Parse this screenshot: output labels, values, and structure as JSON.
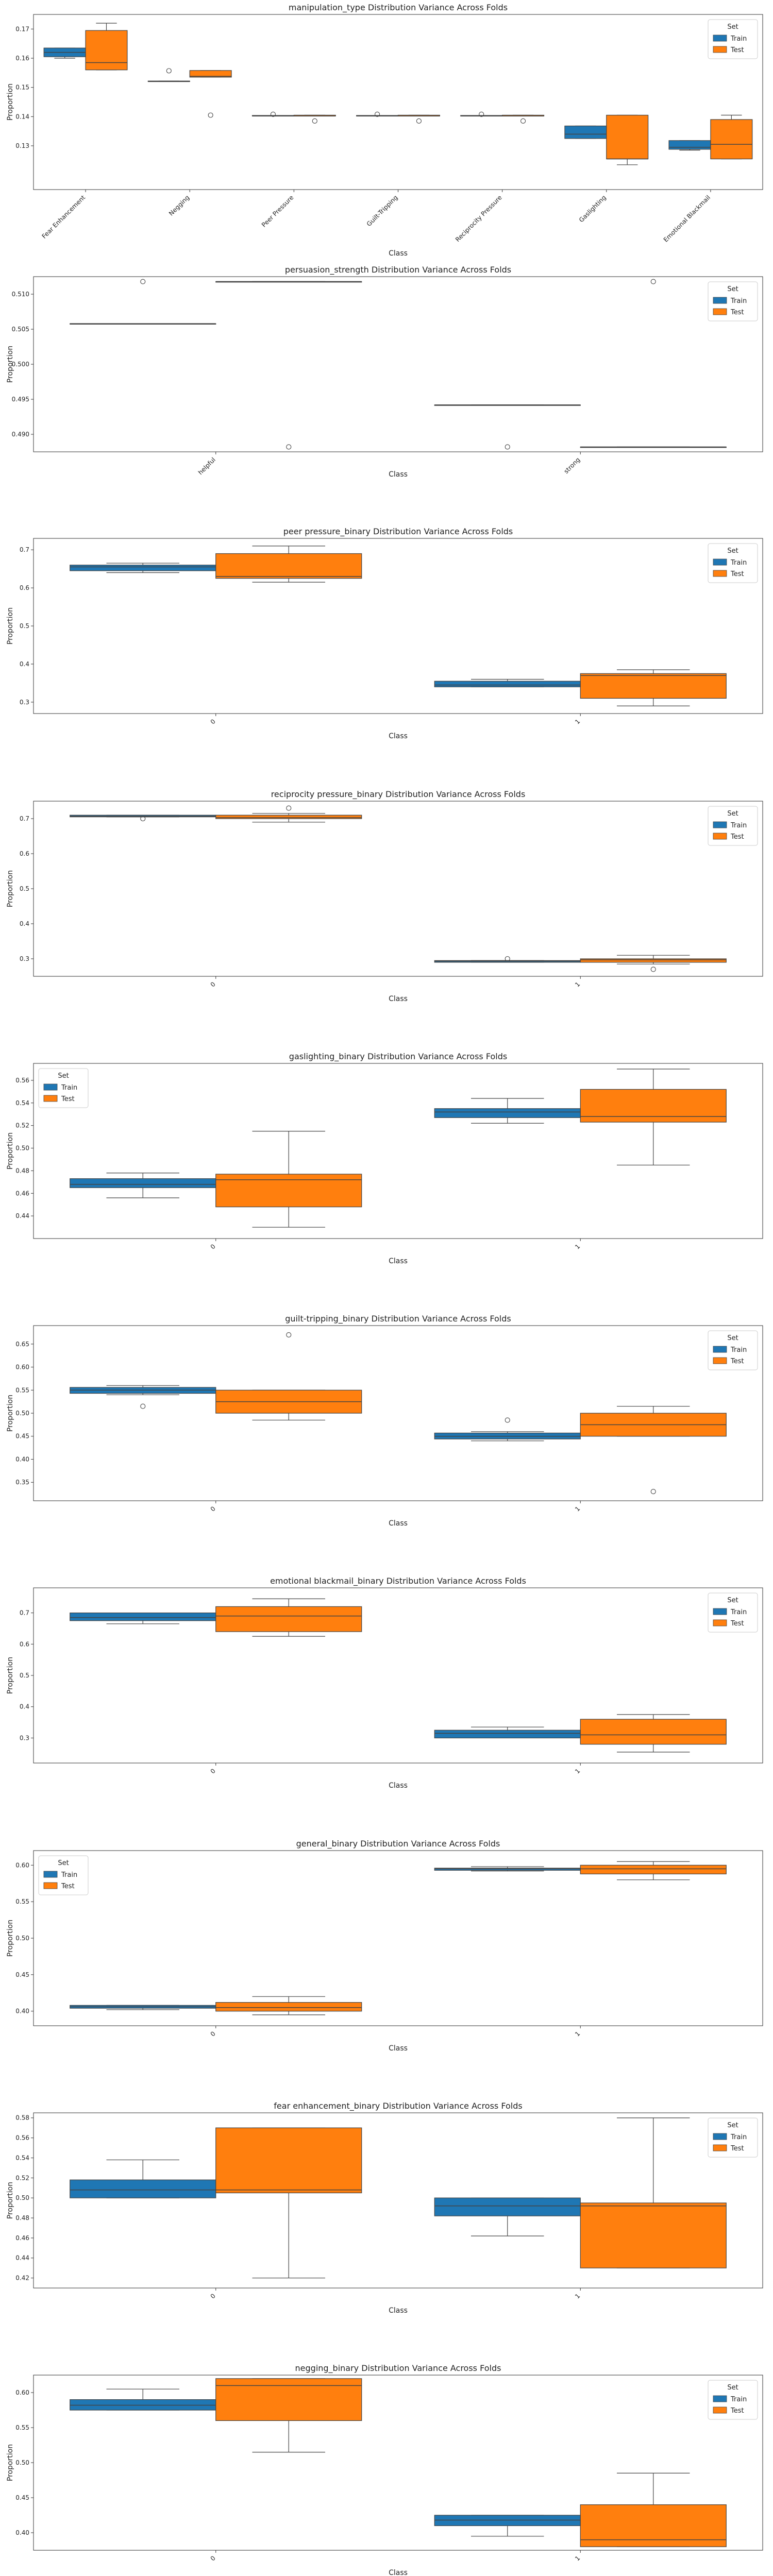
{
  "legend": {
    "title": "Set",
    "items": [
      {
        "label": "Train",
        "color": "#1f77b4"
      },
      {
        "label": "Test",
        "color": "#ff7f0e"
      }
    ]
  },
  "chart_data": [
    {
      "type": "box",
      "title": "manipulation_type Distribution Variance Across Folds",
      "xlabel": "Class",
      "ylabel": "Proportion",
      "ylim": [
        0.115,
        0.175
      ],
      "yticks": [
        0.13,
        0.14,
        0.15,
        0.16,
        0.17
      ],
      "legend_position": "top-right",
      "categories": [
        "Fear Enhancement",
        "Negging",
        "Peer Pressure",
        "Guilt-Tripping",
        "Reciprocity Pressure",
        "Gaslighting",
        "Emotional Blackmail"
      ],
      "series": [
        {
          "name": "Train",
          "boxes": [
            {
              "min": 0.16,
              "q1": 0.1605,
              "median": 0.162,
              "q3": 0.1635,
              "max": 0.1635,
              "outliers": []
            },
            {
              "min": 0.152,
              "q1": 0.152,
              "median": 0.152,
              "q3": 0.1522,
              "max": 0.1522,
              "outliers": [
                0.1557
              ]
            },
            {
              "min": 0.1402,
              "q1": 0.1402,
              "median": 0.1402,
              "q3": 0.1404,
              "max": 0.1404,
              "outliers": [
                0.1408
              ]
            },
            {
              "min": 0.1402,
              "q1": 0.1402,
              "median": 0.1402,
              "q3": 0.1404,
              "max": 0.1404,
              "outliers": [
                0.1408
              ]
            },
            {
              "min": 0.1402,
              "q1": 0.1402,
              "median": 0.1402,
              "q3": 0.1404,
              "max": 0.1404,
              "outliers": [
                0.1408
              ]
            },
            {
              "min": 0.1325,
              "q1": 0.1325,
              "median": 0.134,
              "q3": 0.1368,
              "max": 0.1368,
              "outliers": []
            },
            {
              "min": 0.1285,
              "q1": 0.1288,
              "median": 0.1295,
              "q3": 0.1318,
              "max": 0.1318,
              "outliers": []
            }
          ]
        },
        {
          "name": "Test",
          "boxes": [
            {
              "min": 0.156,
              "q1": 0.156,
              "median": 0.1585,
              "q3": 0.1695,
              "max": 0.172,
              "outliers": []
            },
            {
              "min": 0.1535,
              "q1": 0.1535,
              "median": 0.1538,
              "q3": 0.1558,
              "max": 0.1558,
              "outliers": [
                0.1405
              ]
            },
            {
              "min": 0.1402,
              "q1": 0.1402,
              "median": 0.1402,
              "q3": 0.1405,
              "max": 0.1405,
              "outliers": [
                0.1385
              ]
            },
            {
              "min": 0.1402,
              "q1": 0.1402,
              "median": 0.1402,
              "q3": 0.1405,
              "max": 0.1405,
              "outliers": [
                0.1385
              ]
            },
            {
              "min": 0.1402,
              "q1": 0.1402,
              "median": 0.1402,
              "q3": 0.1405,
              "max": 0.1405,
              "outliers": [
                0.1385
              ]
            },
            {
              "min": 0.1235,
              "q1": 0.1255,
              "median": 0.1255,
              "q3": 0.1405,
              "max": 0.1405,
              "outliers": []
            },
            {
              "min": 0.1255,
              "q1": 0.1255,
              "median": 0.1305,
              "q3": 0.139,
              "max": 0.1405,
              "outliers": []
            }
          ]
        }
      ]
    },
    {
      "type": "box",
      "title": "persuasion_strength Distribution Variance Across Folds",
      "xlabel": "Class",
      "ylabel": "Proportion",
      "ylim": [
        0.4875,
        0.5125
      ],
      "yticks": [
        0.49,
        0.495,
        0.5,
        0.505,
        0.51
      ],
      "legend_position": "top-right",
      "categories": [
        "helpful",
        "strong"
      ],
      "series": [
        {
          "name": "Train",
          "boxes": [
            {
              "min": 0.5058,
              "q1": 0.5058,
              "median": 0.5058,
              "q3": 0.5058,
              "max": 0.5058,
              "outliers": [
                0.5118
              ]
            },
            {
              "min": 0.4942,
              "q1": 0.4942,
              "median": 0.4942,
              "q3": 0.4942,
              "max": 0.4942,
              "outliers": [
                0.4882
              ]
            }
          ]
        },
        {
          "name": "Test",
          "boxes": [
            {
              "min": 0.5118,
              "q1": 0.5118,
              "median": 0.5118,
              "q3": 0.5118,
              "max": 0.5118,
              "outliers": [
                0.4882
              ]
            },
            {
              "min": 0.4882,
              "q1": 0.4882,
              "median": 0.4882,
              "q3": 0.4882,
              "max": 0.4882,
              "outliers": [
                0.5118
              ]
            }
          ]
        }
      ]
    },
    {
      "type": "box",
      "title": "peer pressure_binary Distribution Variance Across Folds",
      "xlabel": "Class",
      "ylabel": "Proportion",
      "ylim": [
        0.27,
        0.73
      ],
      "yticks": [
        0.3,
        0.4,
        0.5,
        0.6,
        0.7
      ],
      "legend_position": "top-right",
      "categories": [
        "0",
        "1"
      ],
      "series": [
        {
          "name": "Train",
          "boxes": [
            {
              "min": 0.64,
              "q1": 0.645,
              "median": 0.655,
              "q3": 0.66,
              "max": 0.665,
              "outliers": []
            },
            {
              "min": 0.34,
              "q1": 0.34,
              "median": 0.345,
              "q3": 0.355,
              "max": 0.36,
              "outliers": []
            }
          ]
        },
        {
          "name": "Test",
          "boxes": [
            {
              "min": 0.615,
              "q1": 0.625,
              "median": 0.63,
              "q3": 0.69,
              "max": 0.71,
              "outliers": []
            },
            {
              "min": 0.29,
              "q1": 0.31,
              "median": 0.37,
              "q3": 0.375,
              "max": 0.385,
              "outliers": []
            }
          ]
        }
      ]
    },
    {
      "type": "box",
      "title": "reciprocity pressure_binary Distribution Variance Across Folds",
      "xlabel": "Class",
      "ylabel": "Proportion",
      "ylim": [
        0.25,
        0.75
      ],
      "yticks": [
        0.3,
        0.4,
        0.5,
        0.6,
        0.7
      ],
      "legend_position": "top-right",
      "categories": [
        "0",
        "1"
      ],
      "series": [
        {
          "name": "Train",
          "boxes": [
            {
              "min": 0.705,
              "q1": 0.705,
              "median": 0.707,
              "q3": 0.71,
              "max": 0.71,
              "outliers": [
                0.7
              ]
            },
            {
              "min": 0.29,
              "q1": 0.29,
              "median": 0.293,
              "q3": 0.295,
              "max": 0.295,
              "outliers": [
                0.3
              ]
            }
          ]
        },
        {
          "name": "Test",
          "boxes": [
            {
              "min": 0.69,
              "q1": 0.7,
              "median": 0.703,
              "q3": 0.71,
              "max": 0.715,
              "outliers": [
                0.73
              ]
            },
            {
              "min": 0.285,
              "q1": 0.29,
              "median": 0.297,
              "q3": 0.3,
              "max": 0.31,
              "outliers": [
                0.27
              ]
            }
          ]
        }
      ]
    },
    {
      "type": "box",
      "title": "gaslighting_binary Distribution Variance Across Folds",
      "xlabel": "Class",
      "ylabel": "Proportion",
      "ylim": [
        0.42,
        0.575
      ],
      "yticks": [
        0.44,
        0.46,
        0.48,
        0.5,
        0.52,
        0.54,
        0.56
      ],
      "legend_position": "top-left",
      "categories": [
        "0",
        "1"
      ],
      "series": [
        {
          "name": "Train",
          "boxes": [
            {
              "min": 0.456,
              "q1": 0.465,
              "median": 0.468,
              "q3": 0.473,
              "max": 0.478,
              "outliers": []
            },
            {
              "min": 0.522,
              "q1": 0.527,
              "median": 0.532,
              "q3": 0.535,
              "max": 0.544,
              "outliers": []
            }
          ]
        },
        {
          "name": "Test",
          "boxes": [
            {
              "min": 0.43,
              "q1": 0.448,
              "median": 0.472,
              "q3": 0.477,
              "max": 0.515,
              "outliers": []
            },
            {
              "min": 0.485,
              "q1": 0.523,
              "median": 0.528,
              "q3": 0.552,
              "max": 0.57,
              "outliers": []
            }
          ]
        }
      ]
    },
    {
      "type": "box",
      "title": "guilt-tripping_binary Distribution Variance Across Folds",
      "xlabel": "Class",
      "ylabel": "Proportion",
      "ylim": [
        0.31,
        0.69
      ],
      "yticks": [
        0.35,
        0.4,
        0.45,
        0.5,
        0.55,
        0.6,
        0.65
      ],
      "legend_position": "top-right",
      "categories": [
        "0",
        "1"
      ],
      "series": [
        {
          "name": "Train",
          "boxes": [
            {
              "min": 0.54,
              "q1": 0.543,
              "median": 0.55,
              "q3": 0.556,
              "max": 0.56,
              "outliers": [
                0.515
              ]
            },
            {
              "min": 0.44,
              "q1": 0.444,
              "median": 0.45,
              "q3": 0.457,
              "max": 0.46,
              "outliers": [
                0.485
              ]
            }
          ]
        },
        {
          "name": "Test",
          "boxes": [
            {
              "min": 0.485,
              "q1": 0.5,
              "median": 0.525,
              "q3": 0.55,
              "max": 0.55,
              "outliers": [
                0.67
              ]
            },
            {
              "min": 0.45,
              "q1": 0.45,
              "median": 0.475,
              "q3": 0.5,
              "max": 0.515,
              "outliers": [
                0.33
              ]
            }
          ]
        }
      ]
    },
    {
      "type": "box",
      "title": "emotional blackmail_binary Distribution Variance Across Folds",
      "xlabel": "Class",
      "ylabel": "Proportion",
      "ylim": [
        0.22,
        0.78
      ],
      "yticks": [
        0.3,
        0.4,
        0.5,
        0.6,
        0.7
      ],
      "legend_position": "top-right",
      "categories": [
        "0",
        "1"
      ],
      "series": [
        {
          "name": "Train",
          "boxes": [
            {
              "min": 0.665,
              "q1": 0.675,
              "median": 0.685,
              "q3": 0.7,
              "max": 0.7,
              "outliers": []
            },
            {
              "min": 0.3,
              "q1": 0.3,
              "median": 0.315,
              "q3": 0.325,
              "max": 0.335,
              "outliers": []
            }
          ]
        },
        {
          "name": "Test",
          "boxes": [
            {
              "min": 0.625,
              "q1": 0.64,
              "median": 0.69,
              "q3": 0.72,
              "max": 0.745,
              "outliers": []
            },
            {
              "min": 0.255,
              "q1": 0.28,
              "median": 0.31,
              "q3": 0.36,
              "max": 0.375,
              "outliers": []
            }
          ]
        }
      ]
    },
    {
      "type": "box",
      "title": "general_binary Distribution Variance Across Folds",
      "xlabel": "Class",
      "ylabel": "Proportion",
      "ylim": [
        0.38,
        0.62
      ],
      "yticks": [
        0.4,
        0.45,
        0.5,
        0.55,
        0.6
      ],
      "legend_position": "top-left",
      "categories": [
        "0",
        "1"
      ],
      "series": [
        {
          "name": "Train",
          "boxes": [
            {
              "min": 0.402,
              "q1": 0.404,
              "median": 0.406,
              "q3": 0.408,
              "max": 0.408,
              "outliers": []
            },
            {
              "min": 0.592,
              "q1": 0.593,
              "median": 0.595,
              "q3": 0.596,
              "max": 0.598,
              "outliers": []
            }
          ]
        },
        {
          "name": "Test",
          "boxes": [
            {
              "min": 0.395,
              "q1": 0.4,
              "median": 0.405,
              "q3": 0.412,
              "max": 0.42,
              "outliers": []
            },
            {
              "min": 0.58,
              "q1": 0.588,
              "median": 0.595,
              "q3": 0.6,
              "max": 0.605,
              "outliers": []
            }
          ]
        }
      ]
    },
    {
      "type": "box",
      "title": "fear enhancement_binary Distribution Variance Across Folds",
      "xlabel": "Class",
      "ylabel": "Proportion",
      "ylim": [
        0.41,
        0.585
      ],
      "yticks": [
        0.42,
        0.44,
        0.46,
        0.48,
        0.5,
        0.52,
        0.54,
        0.56,
        0.58
      ],
      "legend_position": "top-right",
      "categories": [
        "0",
        "1"
      ],
      "series": [
        {
          "name": "Train",
          "boxes": [
            {
              "min": 0.5,
              "q1": 0.5,
              "median": 0.508,
              "q3": 0.518,
              "max": 0.538,
              "outliers": []
            },
            {
              "min": 0.462,
              "q1": 0.482,
              "median": 0.492,
              "q3": 0.5,
              "max": 0.5,
              "outliers": []
            }
          ]
        },
        {
          "name": "Test",
          "boxes": [
            {
              "min": 0.42,
              "q1": 0.505,
              "median": 0.508,
              "q3": 0.57,
              "max": 0.57,
              "outliers": []
            },
            {
              "min": 0.43,
              "q1": 0.43,
              "median": 0.492,
              "q3": 0.495,
              "max": 0.58,
              "outliers": []
            }
          ]
        }
      ]
    },
    {
      "type": "box",
      "title": "negging_binary Distribution Variance Across Folds",
      "xlabel": "Class",
      "ylabel": "Proportion",
      "ylim": [
        0.375,
        0.625
      ],
      "yticks": [
        0.4,
        0.45,
        0.5,
        0.55,
        0.6
      ],
      "legend_position": "top-right",
      "categories": [
        "0",
        "1"
      ],
      "series": [
        {
          "name": "Train",
          "boxes": [
            {
              "min": 0.575,
              "q1": 0.575,
              "median": 0.582,
              "q3": 0.59,
              "max": 0.605,
              "outliers": []
            },
            {
              "min": 0.395,
              "q1": 0.41,
              "median": 0.418,
              "q3": 0.425,
              "max": 0.425,
              "outliers": []
            }
          ]
        },
        {
          "name": "Test",
          "boxes": [
            {
              "min": 0.515,
              "q1": 0.56,
              "median": 0.61,
              "q3": 0.62,
              "max": 0.62,
              "outliers": []
            },
            {
              "min": 0.38,
              "q1": 0.38,
              "median": 0.39,
              "q3": 0.44,
              "max": 0.485,
              "outliers": []
            }
          ]
        }
      ]
    }
  ]
}
